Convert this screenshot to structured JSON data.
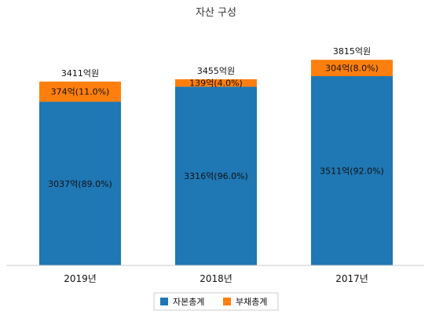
{
  "chart_data": {
    "type": "bar",
    "stacked": true,
    "title": "자산 구성",
    "categories": [
      "2019년",
      "2018년",
      "2017년"
    ],
    "ylim": [
      0,
      4400
    ],
    "grid": false,
    "legend_position": "bottom",
    "series": [
      {
        "name": "자본총계",
        "color": "#1f77b4",
        "values": [
          3037,
          3316,
          3511
        ],
        "labels": [
          "3037억(89.0%)",
          "3316억(96.0%)",
          "3511억(92.0%)"
        ]
      },
      {
        "name": "부채총계",
        "color": "#ff7f0e",
        "values": [
          374,
          139,
          304
        ],
        "labels": [
          "374억(11.0%)",
          "139억(4.0%)",
          "304억(8.0%)"
        ]
      }
    ],
    "totals": [
      "3411억원",
      "3455억원",
      "3815억원"
    ]
  }
}
